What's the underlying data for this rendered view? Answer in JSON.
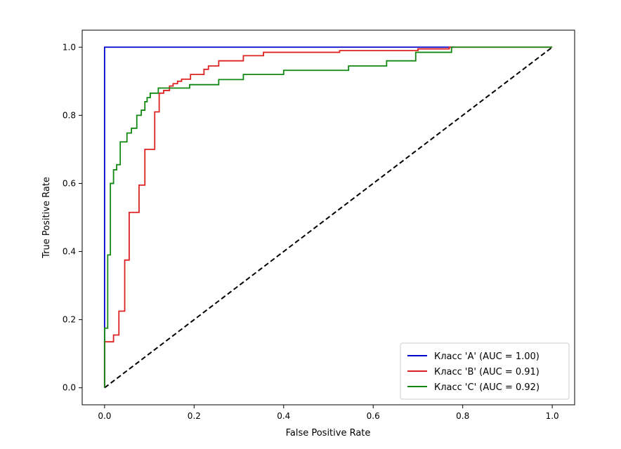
{
  "chart_data": {
    "type": "line",
    "title": "",
    "xlabel": "False Positive Rate",
    "ylabel": "True Positive Rate",
    "xlim": [
      -0.05,
      1.05
    ],
    "ylim": [
      -0.05,
      1.05
    ],
    "x_ticks": [
      0.0,
      0.2,
      0.4,
      0.6,
      0.8,
      1.0
    ],
    "x_tick_labels": [
      "0.0",
      "0.2",
      "0.4",
      "0.6",
      "0.8",
      "1.0"
    ],
    "y_ticks": [
      0.0,
      0.2,
      0.4,
      0.6,
      0.8,
      1.0
    ],
    "y_tick_labels": [
      "0.0",
      "0.2",
      "0.4",
      "0.6",
      "0.8",
      "1.0"
    ],
    "grid": false,
    "legend_position": "lower-right",
    "diagonal": {
      "name": "chance",
      "color": "#000000",
      "style": "dashed",
      "points": [
        [
          0,
          0
        ],
        [
          1,
          1
        ]
      ]
    },
    "series": [
      {
        "name": "Класс 'A' (AUC = 1.00)",
        "color": "#0000cc",
        "auc": 1.0,
        "points": [
          [
            0,
            0
          ],
          [
            0,
            1.0
          ],
          [
            0.78,
            1.0
          ]
        ]
      },
      {
        "name": "Класс 'B' (AUC = 0.91)",
        "color": "#dd2222",
        "auc": 0.91,
        "points": [
          [
            0,
            0
          ],
          [
            0,
            0.135
          ],
          [
            0.02,
            0.135
          ],
          [
            0.02,
            0.155
          ],
          [
            0.032,
            0.155
          ],
          [
            0.032,
            0.225
          ],
          [
            0.045,
            0.225
          ],
          [
            0.045,
            0.375
          ],
          [
            0.055,
            0.375
          ],
          [
            0.055,
            0.515
          ],
          [
            0.077,
            0.515
          ],
          [
            0.077,
            0.595
          ],
          [
            0.09,
            0.595
          ],
          [
            0.09,
            0.7
          ],
          [
            0.112,
            0.7
          ],
          [
            0.112,
            0.81
          ],
          [
            0.122,
            0.81
          ],
          [
            0.122,
            0.865
          ],
          [
            0.132,
            0.865
          ],
          [
            0.132,
            0.873
          ],
          [
            0.145,
            0.873
          ],
          [
            0.145,
            0.886
          ],
          [
            0.153,
            0.886
          ],
          [
            0.153,
            0.893
          ],
          [
            0.163,
            0.893
          ],
          [
            0.163,
            0.9
          ],
          [
            0.172,
            0.9
          ],
          [
            0.172,
            0.906
          ],
          [
            0.192,
            0.906
          ],
          [
            0.192,
            0.92
          ],
          [
            0.222,
            0.92
          ],
          [
            0.222,
            0.935
          ],
          [
            0.232,
            0.935
          ],
          [
            0.232,
            0.945
          ],
          [
            0.255,
            0.945
          ],
          [
            0.255,
            0.96
          ],
          [
            0.31,
            0.96
          ],
          [
            0.31,
            0.975
          ],
          [
            0.355,
            0.975
          ],
          [
            0.355,
            0.985
          ],
          [
            0.525,
            0.985
          ],
          [
            0.525,
            0.99
          ],
          [
            0.7,
            0.99
          ],
          [
            0.7,
            0.995
          ],
          [
            0.77,
            0.995
          ],
          [
            0.77,
            1.0
          ],
          [
            1.0,
            1.0
          ]
        ]
      },
      {
        "name": "Класс 'C' (AUC = 0.92)",
        "color": "#118811",
        "auc": 0.92,
        "points": [
          [
            0,
            0
          ],
          [
            0,
            0.175
          ],
          [
            0.007,
            0.175
          ],
          [
            0.007,
            0.39
          ],
          [
            0.013,
            0.39
          ],
          [
            0.013,
            0.6
          ],
          [
            0.02,
            0.6
          ],
          [
            0.02,
            0.64
          ],
          [
            0.027,
            0.64
          ],
          [
            0.027,
            0.655
          ],
          [
            0.035,
            0.655
          ],
          [
            0.035,
            0.722
          ],
          [
            0.05,
            0.722
          ],
          [
            0.05,
            0.748
          ],
          [
            0.06,
            0.748
          ],
          [
            0.06,
            0.762
          ],
          [
            0.072,
            0.762
          ],
          [
            0.072,
            0.8
          ],
          [
            0.082,
            0.8
          ],
          [
            0.082,
            0.815
          ],
          [
            0.09,
            0.815
          ],
          [
            0.09,
            0.84
          ],
          [
            0.095,
            0.84
          ],
          [
            0.095,
            0.852
          ],
          [
            0.102,
            0.852
          ],
          [
            0.102,
            0.865
          ],
          [
            0.12,
            0.865
          ],
          [
            0.12,
            0.88
          ],
          [
            0.19,
            0.88
          ],
          [
            0.19,
            0.89
          ],
          [
            0.255,
            0.89
          ],
          [
            0.255,
            0.905
          ],
          [
            0.31,
            0.905
          ],
          [
            0.31,
            0.92
          ],
          [
            0.4,
            0.92
          ],
          [
            0.4,
            0.932
          ],
          [
            0.545,
            0.932
          ],
          [
            0.545,
            0.945
          ],
          [
            0.63,
            0.945
          ],
          [
            0.63,
            0.96
          ],
          [
            0.695,
            0.96
          ],
          [
            0.695,
            0.985
          ],
          [
            0.775,
            0.985
          ],
          [
            0.775,
            1.0
          ],
          [
            1.0,
            1.0
          ]
        ]
      }
    ]
  }
}
